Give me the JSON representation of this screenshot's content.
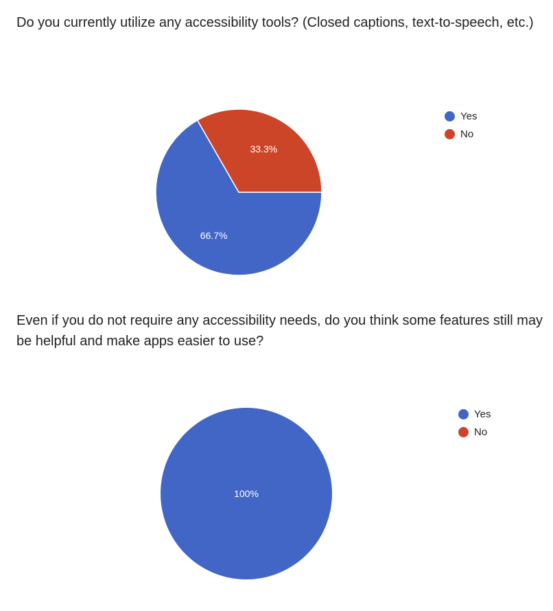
{
  "questions": [
    {
      "text": "Do you currently utilize any accessibility tools? (Closed captions, text-to-speech, etc.)"
    },
    {
      "text": "Even if you do not require any accessibility needs, do you think some features still may be helpful and make apps easier to use?"
    }
  ],
  "colors": {
    "yes": "#4266c6",
    "no": "#cd4529"
  },
  "legend": [
    {
      "label": "Yes",
      "color": "#4266c6"
    },
    {
      "label": "No",
      "color": "#cd4529"
    }
  ],
  "chart_data": [
    {
      "type": "pie",
      "categories": [
        "Yes",
        "No"
      ],
      "values": [
        66.7,
        33.3
      ],
      "labels": [
        "66.7%",
        "33.3%"
      ],
      "legend_position": "right"
    },
    {
      "type": "pie",
      "categories": [
        "Yes",
        "No"
      ],
      "values": [
        100,
        0
      ],
      "labels": [
        "100%",
        ""
      ],
      "legend_position": "right"
    }
  ]
}
